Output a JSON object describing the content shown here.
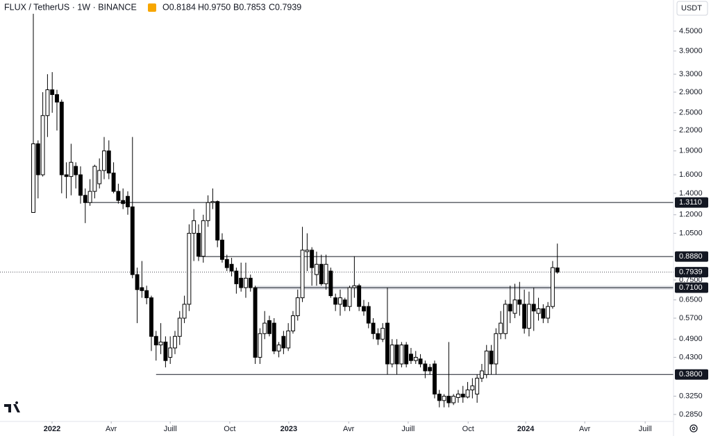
{
  "chart_data": {
    "type": "candlestick",
    "title": "FLUX / TetherUS · 1W · BINANCE",
    "ohlc_header": [
      "O0.8184",
      "H0.9750",
      "B0.7853",
      "C0.7939"
    ],
    "currency_button": "USDT",
    "log_scale": true,
    "up_color": "#ffffff",
    "down_color": "#000000",
    "x": [
      0,
      1,
      2,
      3,
      4,
      5,
      6,
      7,
      8,
      9,
      10,
      11,
      12,
      13,
      14,
      15,
      16,
      17,
      18,
      19,
      20,
      21,
      22,
      23,
      24,
      25,
      26,
      27,
      28,
      29,
      30,
      31,
      32,
      33,
      34,
      35,
      36,
      37,
      38,
      39,
      40,
      41,
      42,
      43,
      44,
      45,
      46,
      47,
      48,
      49,
      50,
      51,
      52,
      53,
      54,
      55,
      56,
      57,
      58,
      59,
      60,
      61,
      62,
      63,
      64,
      65,
      66,
      67,
      68,
      69,
      70,
      71,
      72,
      73,
      74,
      75,
      76,
      77,
      78,
      79,
      80,
      81,
      82,
      83,
      84,
      85,
      86,
      87,
      88,
      89,
      90,
      91,
      92,
      93,
      94,
      95,
      96,
      97,
      98,
      99,
      100,
      101,
      102,
      103,
      104,
      105,
      106,
      107,
      108,
      109,
      110,
      111
    ],
    "open": [
      1.22,
      2.0,
      1.6,
      2.45,
      2.95,
      2.85,
      2.7,
      1.6,
      1.58,
      1.7,
      1.6,
      1.38,
      1.31,
      1.42,
      1.5,
      1.65,
      1.9,
      1.62,
      1.42,
      1.33,
      1.37,
      1.27,
      0.78,
      0.71,
      0.695,
      0.66,
      0.5,
      0.47,
      0.48,
      0.43,
      0.46,
      0.5,
      0.57,
      0.63,
      1.05,
      1.05,
      0.89,
      1.15,
      1.31,
      1.32,
      1.0,
      0.87,
      0.84,
      0.8,
      0.76,
      0.71,
      0.76,
      0.71,
      0.43,
      0.51,
      0.56,
      0.55,
      0.45,
      0.5,
      0.46,
      0.52,
      0.58,
      0.66,
      0.92,
      0.93,
      0.78,
      0.84,
      0.73,
      0.8,
      0.66,
      0.63,
      0.65,
      0.62,
      0.71,
      0.72,
      0.62,
      0.62,
      0.55,
      0.51,
      0.49,
      0.55,
      0.41,
      0.47,
      0.41,
      0.47,
      0.44,
      0.42,
      0.425,
      0.41,
      0.4,
      0.41,
      0.33,
      0.315,
      0.325,
      0.31,
      0.322,
      0.33,
      0.323,
      0.34,
      0.33,
      0.37,
      0.38,
      0.45,
      0.41,
      0.51,
      0.51,
      0.63,
      0.59,
      0.65,
      0.63,
      0.53,
      0.63,
      0.59,
      0.61,
      0.57,
      0.62,
      0.8184
    ],
    "high": [
      5.1,
      2.05,
      2.9,
      3.3,
      3.35,
      2.95,
      2.75,
      1.75,
      2.0,
      1.75,
      1.7,
      1.45,
      1.55,
      1.72,
      1.8,
      2.1,
      2.05,
      1.75,
      1.5,
      1.45,
      1.42,
      2.1,
      0.82,
      0.86,
      0.72,
      0.67,
      0.52,
      0.55,
      0.5,
      0.5,
      0.52,
      0.6,
      0.67,
      1.12,
      1.25,
      1.12,
      1.2,
      1.38,
      1.45,
      1.33,
      1.05,
      0.9,
      0.88,
      0.82,
      0.85,
      0.85,
      0.78,
      0.72,
      0.53,
      0.6,
      0.58,
      0.57,
      0.48,
      0.52,
      0.55,
      0.6,
      0.7,
      1.1,
      1.05,
      0.95,
      0.92,
      0.9,
      0.9,
      0.82,
      0.68,
      0.7,
      0.66,
      0.72,
      0.89,
      0.73,
      0.65,
      0.64,
      0.57,
      0.53,
      0.55,
      0.71,
      0.49,
      0.49,
      0.48,
      0.48,
      0.46,
      0.45,
      0.44,
      0.42,
      0.41,
      0.42,
      0.34,
      0.33,
      0.48,
      0.33,
      0.34,
      0.35,
      0.36,
      0.37,
      0.38,
      0.41,
      0.47,
      0.47,
      0.53,
      0.6,
      0.65,
      0.72,
      0.73,
      0.74,
      0.7,
      0.69,
      0.71,
      0.66,
      0.63,
      0.64,
      0.86,
      0.975
    ],
    "low": [
      1.22,
      1.35,
      1.58,
      2.1,
      2.5,
      2.2,
      1.4,
      1.35,
      1.38,
      1.45,
      1.3,
      1.13,
      1.28,
      1.35,
      1.45,
      1.55,
      1.55,
      1.4,
      1.3,
      1.25,
      1.2,
      0.76,
      0.55,
      0.66,
      0.63,
      0.45,
      0.42,
      0.44,
      0.4,
      0.41,
      0.44,
      0.47,
      0.55,
      0.6,
      0.86,
      0.86,
      0.85,
      1.1,
      1.25,
      0.95,
      0.85,
      0.8,
      0.77,
      0.68,
      0.69,
      0.66,
      0.69,
      0.41,
      0.41,
      0.49,
      0.5,
      0.44,
      0.43,
      0.44,
      0.45,
      0.51,
      0.56,
      0.64,
      0.8,
      0.72,
      0.72,
      0.72,
      0.7,
      0.66,
      0.6,
      0.58,
      0.6,
      0.6,
      0.66,
      0.6,
      0.58,
      0.53,
      0.49,
      0.47,
      0.48,
      0.38,
      0.4,
      0.38,
      0.4,
      0.4,
      0.41,
      0.41,
      0.4,
      0.37,
      0.38,
      0.32,
      0.3,
      0.3,
      0.3,
      0.305,
      0.31,
      0.31,
      0.32,
      0.32,
      0.31,
      0.36,
      0.37,
      0.38,
      0.38,
      0.49,
      0.49,
      0.55,
      0.57,
      0.58,
      0.51,
      0.5,
      0.52,
      0.56,
      0.55,
      0.55,
      0.61,
      0.7853
    ],
    "close": [
      2.0,
      1.6,
      2.45,
      2.95,
      2.85,
      2.7,
      1.6,
      1.58,
      1.75,
      1.6,
      1.38,
      1.31,
      1.42,
      1.7,
      1.65,
      1.9,
      1.62,
      1.42,
      1.33,
      1.3,
      1.27,
      0.78,
      0.7,
      0.695,
      0.66,
      0.5,
      0.47,
      0.48,
      0.42,
      0.46,
      0.5,
      0.57,
      0.63,
      1.05,
      1.15,
      0.89,
      1.15,
      1.31,
      1.32,
      1.0,
      0.87,
      0.82,
      0.8,
      0.73,
      0.71,
      0.76,
      0.71,
      0.43,
      0.51,
      0.55,
      0.51,
      0.45,
      0.47,
      0.46,
      0.52,
      0.58,
      0.66,
      0.93,
      0.93,
      0.82,
      0.84,
      0.73,
      0.84,
      0.67,
      0.63,
      0.66,
      0.62,
      0.71,
      0.72,
      0.62,
      0.6,
      0.55,
      0.51,
      0.49,
      0.53,
      0.41,
      0.47,
      0.41,
      0.47,
      0.41,
      0.42,
      0.43,
      0.41,
      0.39,
      0.39,
      0.33,
      0.315,
      0.325,
      0.31,
      0.325,
      0.33,
      0.323,
      0.34,
      0.35,
      0.37,
      0.39,
      0.45,
      0.41,
      0.51,
      0.55,
      0.63,
      0.6,
      0.65,
      0.63,
      0.53,
      0.63,
      0.6,
      0.61,
      0.57,
      0.62,
      0.82,
      0.7939
    ],
    "xlim": [
      -7.06,
      135.6
    ],
    "xticks": [
      {
        "value": 3.97,
        "label": "2022"
      },
      {
        "value": 16.5,
        "label": "Avr"
      },
      {
        "value": 29.0,
        "label": "Juill"
      },
      {
        "value": 41.6,
        "label": "Oct"
      },
      {
        "value": 54.1,
        "label": "2023"
      },
      {
        "value": 66.8,
        "label": "Avr"
      },
      {
        "value": 79.4,
        "label": "Juill"
      },
      {
        "value": 92.1,
        "label": "Oct"
      },
      {
        "value": 104.3,
        "label": "2024"
      },
      {
        "value": 116.8,
        "label": "Avr"
      },
      {
        "value": 129.6,
        "label": "Juill"
      }
    ],
    "ylim": [
      0.271,
      5.63
    ],
    "yticks": [
      {
        "value": 4.5,
        "label": "4.5000"
      },
      {
        "value": 3.9,
        "label": "3.9000"
      },
      {
        "value": 3.3,
        "label": "3.3000"
      },
      {
        "value": 2.9,
        "label": "2.9000"
      },
      {
        "value": 2.5,
        "label": "2.5000"
      },
      {
        "value": 2.2,
        "label": "2.2000"
      },
      {
        "value": 1.9,
        "label": "1.9000"
      },
      {
        "value": 1.6,
        "label": "1.6000"
      },
      {
        "value": 1.4,
        "label": "1.4000"
      },
      {
        "value": 1.2,
        "label": "1.2000"
      },
      {
        "value": 1.05,
        "label": "1.0500"
      },
      {
        "value": 0.75,
        "label": "0.7500"
      },
      {
        "value": 0.65,
        "label": "0.6500"
      },
      {
        "value": 0.57,
        "label": "0.5700"
      },
      {
        "value": 0.49,
        "label": "0.4900"
      },
      {
        "value": 0.43,
        "label": "0.4300"
      },
      {
        "value": 0.325,
        "label": "0.3250"
      },
      {
        "value": 0.285,
        "label": "0.2850"
      }
    ],
    "levels": [
      {
        "value": 1.311,
        "label": "1.3110",
        "x_start": 11
      },
      {
        "value": 0.888,
        "label": "0.8880",
        "x_start": 35
      },
      {
        "value": 0.38,
        "label": "0.3800",
        "x_start": 26
      }
    ],
    "zone": {
      "value": 0.71,
      "low": 0.7,
      "high": 0.72,
      "label": "0.7100",
      "x_start": 47
    },
    "last_price_label": "0.7939"
  }
}
